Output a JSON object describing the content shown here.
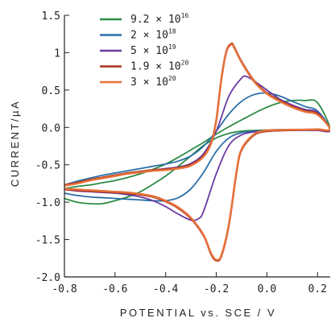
{
  "chart_data": {
    "type": "line",
    "title": "",
    "xlabel": "POTENTIAL vs. SCE / V",
    "ylabel": "CURRENT/µA",
    "xlim": [
      -0.8,
      0.25
    ],
    "ylim": [
      -2.0,
      1.5
    ],
    "x_ticks": [
      "-0.8",
      "-0.6",
      "-0.4",
      "-0.2",
      "0.0",
      "0.2"
    ],
    "y_ticks": [
      "1.5",
      "1",
      "0.5",
      "0.0",
      "-0.5",
      "-1.0",
      "-1.5",
      "-2.0"
    ],
    "legend_position": "top-center",
    "grid": false,
    "series": [
      {
        "name": "9.2 × 10^16",
        "mantissa": "9.2",
        "exponent": "16",
        "color": "#2e8b47",
        "points": [
          [
            -0.8,
            -0.95
          ],
          [
            -0.75,
            -1.0
          ],
          [
            -0.7,
            -1.02
          ],
          [
            -0.65,
            -1.02
          ],
          [
            -0.6,
            -0.98
          ],
          [
            -0.55,
            -0.93
          ],
          [
            -0.5,
            -0.86
          ],
          [
            -0.45,
            -0.76
          ],
          [
            -0.4,
            -0.65
          ],
          [
            -0.35,
            -0.52
          ],
          [
            -0.3,
            -0.38
          ],
          [
            -0.25,
            -0.24
          ],
          [
            -0.2,
            -0.14
          ],
          [
            -0.15,
            -0.08
          ],
          [
            -0.1,
            -0.05
          ],
          [
            -0.05,
            -0.04
          ],
          [
            0.0,
            -0.035
          ],
          [
            0.05,
            -0.03
          ],
          [
            0.1,
            -0.03
          ],
          [
            0.15,
            -0.03
          ],
          [
            0.2,
            -0.03
          ],
          [
            0.25,
            -0.03
          ],
          [
            0.2,
            0.33
          ],
          [
            0.15,
            0.36
          ],
          [
            0.1,
            0.36
          ],
          [
            0.05,
            0.33
          ],
          [
            0.0,
            0.27
          ],
          [
            -0.05,
            0.19
          ],
          [
            -0.1,
            0.1
          ],
          [
            -0.15,
            0.01
          ],
          [
            -0.2,
            -0.09
          ],
          [
            -0.25,
            -0.2
          ],
          [
            -0.3,
            -0.3
          ],
          [
            -0.35,
            -0.4
          ],
          [
            -0.4,
            -0.49
          ],
          [
            -0.45,
            -0.56
          ],
          [
            -0.5,
            -0.62
          ],
          [
            -0.55,
            -0.67
          ],
          [
            -0.6,
            -0.71
          ],
          [
            -0.65,
            -0.74
          ],
          [
            -0.7,
            -0.77
          ],
          [
            -0.75,
            -0.79
          ],
          [
            -0.8,
            -0.82
          ]
        ]
      },
      {
        "name": "2 × 10^18",
        "mantissa": "2",
        "exponent": "18",
        "color": "#2a6fa8",
        "points": [
          [
            -0.8,
            -0.88
          ],
          [
            -0.75,
            -0.91
          ],
          [
            -0.7,
            -0.93
          ],
          [
            -0.65,
            -0.94
          ],
          [
            -0.6,
            -0.95
          ],
          [
            -0.55,
            -0.96
          ],
          [
            -0.5,
            -0.97
          ],
          [
            -0.45,
            -0.98
          ],
          [
            -0.4,
            -0.98
          ],
          [
            -0.35,
            -0.94
          ],
          [
            -0.3,
            -0.82
          ],
          [
            -0.25,
            -0.6
          ],
          [
            -0.2,
            -0.32
          ],
          [
            -0.15,
            -0.14
          ],
          [
            -0.1,
            -0.07
          ],
          [
            -0.05,
            -0.05
          ],
          [
            0.0,
            -0.04
          ],
          [
            0.05,
            -0.04
          ],
          [
            0.1,
            -0.035
          ],
          [
            0.15,
            -0.03
          ],
          [
            0.2,
            -0.03
          ],
          [
            0.25,
            -0.03
          ],
          [
            0.2,
            0.22
          ],
          [
            0.15,
            0.28
          ],
          [
            0.1,
            0.35
          ],
          [
            0.05,
            0.42
          ],
          [
            0.0,
            0.46
          ],
          [
            -0.05,
            0.44
          ],
          [
            -0.1,
            0.35
          ],
          [
            -0.15,
            0.18
          ],
          [
            -0.2,
            -0.05
          ],
          [
            -0.25,
            -0.25
          ],
          [
            -0.3,
            -0.38
          ],
          [
            -0.35,
            -0.45
          ],
          [
            -0.4,
            -0.49
          ],
          [
            -0.45,
            -0.52
          ],
          [
            -0.5,
            -0.55
          ],
          [
            -0.55,
            -0.58
          ],
          [
            -0.6,
            -0.61
          ],
          [
            -0.65,
            -0.64
          ],
          [
            -0.7,
            -0.68
          ],
          [
            -0.75,
            -0.72
          ],
          [
            -0.8,
            -0.77
          ]
        ]
      },
      {
        "name": "5 × 10^19",
        "mantissa": "5",
        "exponent": "19",
        "color": "#6a3aa0",
        "points": [
          [
            -0.8,
            -0.83
          ],
          [
            -0.75,
            -0.85
          ],
          [
            -0.7,
            -0.86
          ],
          [
            -0.65,
            -0.87
          ],
          [
            -0.6,
            -0.88
          ],
          [
            -0.55,
            -0.9
          ],
          [
            -0.5,
            -0.93
          ],
          [
            -0.45,
            -0.98
          ],
          [
            -0.4,
            -1.06
          ],
          [
            -0.35,
            -1.16
          ],
          [
            -0.3,
            -1.24
          ],
          [
            -0.27,
            -1.22
          ],
          [
            -0.25,
            -1.12
          ],
          [
            -0.2,
            -0.62
          ],
          [
            -0.15,
            -0.24
          ],
          [
            -0.1,
            -0.1
          ],
          [
            -0.05,
            -0.06
          ],
          [
            0.0,
            -0.05
          ],
          [
            0.05,
            -0.045
          ],
          [
            0.1,
            -0.04
          ],
          [
            0.15,
            -0.04
          ],
          [
            0.2,
            -0.04
          ],
          [
            0.25,
            -0.04
          ],
          [
            0.2,
            0.2
          ],
          [
            0.15,
            0.24
          ],
          [
            0.1,
            0.3
          ],
          [
            0.05,
            0.38
          ],
          [
            0.0,
            0.5
          ],
          [
            -0.05,
            0.62
          ],
          [
            -0.08,
            0.68
          ],
          [
            -0.1,
            0.66
          ],
          [
            -0.15,
            0.42
          ],
          [
            -0.2,
            -0.05
          ],
          [
            -0.25,
            -0.35
          ],
          [
            -0.3,
            -0.48
          ],
          [
            -0.35,
            -0.53
          ],
          [
            -0.4,
            -0.55
          ],
          [
            -0.45,
            -0.57
          ],
          [
            -0.5,
            -0.59
          ],
          [
            -0.55,
            -0.62
          ],
          [
            -0.6,
            -0.65
          ],
          [
            -0.65,
            -0.68
          ],
          [
            -0.7,
            -0.71
          ],
          [
            -0.75,
            -0.75
          ],
          [
            -0.8,
            -0.78
          ]
        ]
      },
      {
        "name": "1.9 × 10^20",
        "mantissa": "1.9",
        "exponent": "20",
        "color": "#a8331d",
        "points": [
          [
            -0.8,
            -0.83
          ],
          [
            -0.75,
            -0.84
          ],
          [
            -0.7,
            -0.85
          ],
          [
            -0.65,
            -0.86
          ],
          [
            -0.6,
            -0.87
          ],
          [
            -0.55,
            -0.88
          ],
          [
            -0.5,
            -0.9
          ],
          [
            -0.45,
            -0.93
          ],
          [
            -0.4,
            -0.99
          ],
          [
            -0.35,
            -1.08
          ],
          [
            -0.3,
            -1.22
          ],
          [
            -0.25,
            -1.45
          ],
          [
            -0.22,
            -1.7
          ],
          [
            -0.2,
            -1.78
          ],
          [
            -0.18,
            -1.72
          ],
          [
            -0.15,
            -1.3
          ],
          [
            -0.12,
            -0.6
          ],
          [
            -0.1,
            -0.3
          ],
          [
            -0.05,
            -0.1
          ],
          [
            0.0,
            -0.05
          ],
          [
            0.05,
            -0.04
          ],
          [
            0.1,
            -0.035
          ],
          [
            0.15,
            -0.03
          ],
          [
            0.2,
            -0.03
          ],
          [
            0.25,
            -0.03
          ],
          [
            0.2,
            0.18
          ],
          [
            0.15,
            0.22
          ],
          [
            0.1,
            0.28
          ],
          [
            0.05,
            0.36
          ],
          [
            0.0,
            0.46
          ],
          [
            -0.05,
            0.62
          ],
          [
            -0.1,
            0.88
          ],
          [
            -0.13,
            1.08
          ],
          [
            -0.14,
            1.12
          ],
          [
            -0.16,
            1.02
          ],
          [
            -0.18,
            0.65
          ],
          [
            -0.2,
            0.1
          ],
          [
            -0.22,
            -0.2
          ],
          [
            -0.25,
            -0.38
          ],
          [
            -0.3,
            -0.5
          ],
          [
            -0.35,
            -0.54
          ],
          [
            -0.4,
            -0.56
          ],
          [
            -0.45,
            -0.57
          ],
          [
            -0.5,
            -0.59
          ],
          [
            -0.55,
            -0.61
          ],
          [
            -0.6,
            -0.64
          ],
          [
            -0.65,
            -0.67
          ],
          [
            -0.7,
            -0.7
          ],
          [
            -0.75,
            -0.74
          ],
          [
            -0.8,
            -0.77
          ]
        ]
      },
      {
        "name": "3 × 10^20",
        "mantissa": "3",
        "exponent": "20",
        "color": "#e8713a",
        "points": [
          [
            -0.8,
            -0.82
          ],
          [
            -0.75,
            -0.83
          ],
          [
            -0.7,
            -0.84
          ],
          [
            -0.65,
            -0.85
          ],
          [
            -0.6,
            -0.86
          ],
          [
            -0.55,
            -0.87
          ],
          [
            -0.5,
            -0.89
          ],
          [
            -0.45,
            -0.92
          ],
          [
            -0.4,
            -0.98
          ],
          [
            -0.35,
            -1.07
          ],
          [
            -0.3,
            -1.21
          ],
          [
            -0.25,
            -1.44
          ],
          [
            -0.22,
            -1.69
          ],
          [
            -0.2,
            -1.77
          ],
          [
            -0.18,
            -1.71
          ],
          [
            -0.15,
            -1.29
          ],
          [
            -0.12,
            -0.59
          ],
          [
            -0.1,
            -0.29
          ],
          [
            -0.05,
            -0.09
          ],
          [
            0.0,
            -0.04
          ],
          [
            0.05,
            -0.035
          ],
          [
            0.1,
            -0.03
          ],
          [
            0.15,
            -0.03
          ],
          [
            0.2,
            -0.025
          ],
          [
            0.25,
            -0.025
          ],
          [
            0.2,
            0.17
          ],
          [
            0.15,
            0.21
          ],
          [
            0.1,
            0.27
          ],
          [
            0.05,
            0.35
          ],
          [
            0.0,
            0.45
          ],
          [
            -0.05,
            0.61
          ],
          [
            -0.1,
            0.87
          ],
          [
            -0.13,
            1.07
          ],
          [
            -0.14,
            1.11
          ],
          [
            -0.16,
            1.01
          ],
          [
            -0.18,
            0.64
          ],
          [
            -0.2,
            0.09
          ],
          [
            -0.22,
            -0.21
          ],
          [
            -0.25,
            -0.39
          ],
          [
            -0.3,
            -0.51
          ],
          [
            -0.35,
            -0.55
          ],
          [
            -0.4,
            -0.57
          ],
          [
            -0.45,
            -0.58
          ],
          [
            -0.5,
            -0.6
          ],
          [
            -0.55,
            -0.62
          ],
          [
            -0.6,
            -0.65
          ],
          [
            -0.65,
            -0.68
          ],
          [
            -0.7,
            -0.71
          ],
          [
            -0.75,
            -0.75
          ],
          [
            -0.8,
            -0.78
          ]
        ]
      }
    ]
  }
}
